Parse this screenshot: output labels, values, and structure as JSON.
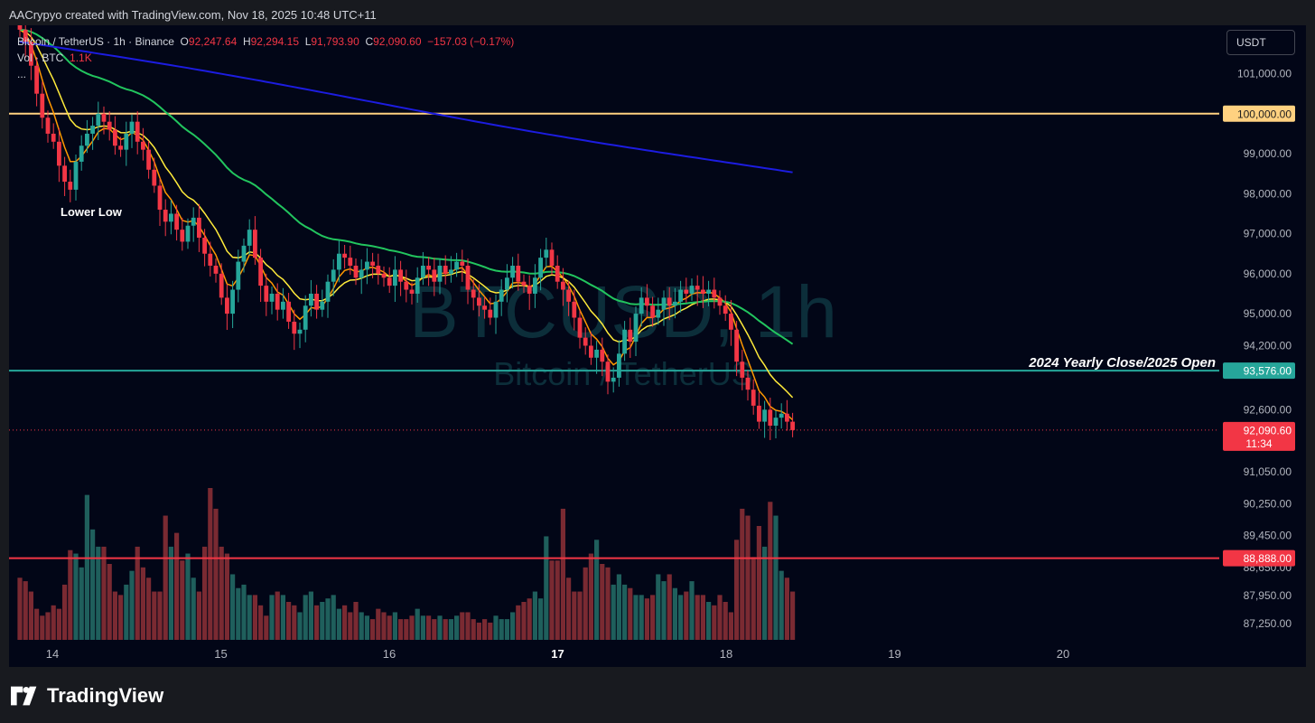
{
  "header": {
    "creator_line": "AACrypyo created with TradingView.com, Nov 18, 2025 10:48 UTC+11"
  },
  "legend": {
    "symbol_line": "Bitcoin / TetherUS · 1h · Binance",
    "o_label": "O",
    "o_value": "92,247.64",
    "h_label": "H",
    "h_value": "92,294.15",
    "l_label": "L",
    "l_value": "91,793.90",
    "c_label": "C",
    "c_value": "92,090.60",
    "change": "−157.03 (−0.17%)",
    "vol_label": "Vol · BTC",
    "vol_value": "1.1K",
    "more": "..."
  },
  "controls": {
    "currency_button": "USDT"
  },
  "watermark": {
    "line1": "BTCUSD, 1h",
    "line2": "Bitcoin / TetherUS"
  },
  "annotations": {
    "lower_low": "Lower Low",
    "yearly_close": "2024 Yearly Close/2025 Open"
  },
  "brand": {
    "name": "TradingView"
  },
  "colors": {
    "up": "#26a69a",
    "down": "#f23645",
    "ema_fast": "#ff9800",
    "ema_mid": "#ffeb3b",
    "ema_slow": "#22c55e",
    "ema_200": "#1c1ce0",
    "level_100k": "#ffd180",
    "level_93576": "#26a69a",
    "level_88888": "#f23645",
    "background": "#020617"
  },
  "chart_data": {
    "type": "candlestick",
    "timeframe": "1h",
    "ylim": [
      86800,
      101600
    ],
    "x_ticks": [
      {
        "label": "14",
        "day": 14
      },
      {
        "label": "15",
        "day": 15
      },
      {
        "label": "16",
        "day": 16
      },
      {
        "label": "17",
        "day": 17
      },
      {
        "label": "18",
        "day": 18
      },
      {
        "label": "19",
        "day": 19
      },
      {
        "label": "20",
        "day": 20
      }
    ],
    "y_ticks": [
      "101,000.00",
      "99,000.00",
      "98,000.00",
      "97,000.00",
      "96,000.00",
      "95,000.00",
      "94,200.00",
      "92,600.00",
      "91,050.00",
      "90,250.00",
      "89,450.00",
      "88,650.00",
      "87,950.00",
      "87,250.00"
    ],
    "y_tick_values": [
      101000,
      99000,
      98000,
      97000,
      96000,
      95000,
      94200,
      92600,
      91050,
      90250,
      89450,
      88650,
      87950,
      87250
    ],
    "levels": [
      {
        "label": "100,000.00",
        "value": 100000,
        "color": "#ffd180"
      },
      {
        "label": "93,576.00",
        "value": 93576,
        "color": "#26a69a"
      },
      {
        "label": "88,888.00",
        "value": 88888,
        "color": "#f23645"
      }
    ],
    "last_price": {
      "label": "92,090.60",
      "countdown": "11:34",
      "value": 92090.6
    },
    "closes": [
      102100,
      101800,
      101200,
      100500,
      99900,
      99500,
      99300,
      98700,
      98300,
      98100,
      98800,
      99200,
      99500,
      99700,
      100000,
      99800,
      99600,
      99200,
      99100,
      99500,
      99800,
      99300,
      99100,
      98600,
      98200,
      97600,
      97300,
      97500,
      97100,
      96800,
      97200,
      97400,
      96900,
      96500,
      96200,
      96000,
      95400,
      95000,
      95600,
      96300,
      96700,
      97100,
      96400,
      95700,
      95300,
      95500,
      95100,
      95300,
      94800,
      94500,
      94600,
      95200,
      95500,
      95100,
      95300,
      95800,
      96100,
      96500,
      96400,
      96200,
      95900,
      96100,
      96300,
      96200,
      96000,
      95900,
      95700,
      96100,
      95800,
      95600,
      95500,
      95900,
      96200,
      96100,
      95800,
      96200,
      96000,
      96100,
      96300,
      96200,
      95600,
      95400,
      95200,
      95100,
      94900,
      95300,
      95600,
      95900,
      96200,
      95800,
      95700,
      95500,
      95900,
      96400,
      96600,
      96200,
      95800,
      95600,
      95300,
      94900,
      94400,
      94200,
      93900,
      94100,
      93800,
      93300,
      93400,
      94000,
      94600,
      94300,
      95000,
      95400,
      95200,
      94900,
      95100,
      95400,
      95200,
      95300,
      95600,
      95500,
      95700,
      95600,
      95500,
      95600,
      95400,
      95200,
      95000,
      94600,
      93800,
      93400,
      93100,
      92700,
      92300,
      92600,
      92200,
      92400,
      92500,
      92300,
      92090
    ],
    "volumes": [
      900,
      850,
      700,
      450,
      350,
      400,
      500,
      450,
      800,
      1300,
      1250,
      1050,
      2100,
      1600,
      1350,
      1350,
      1100,
      700,
      650,
      800,
      1000,
      1350,
      1050,
      900,
      700,
      700,
      1800,
      1350,
      1550,
      1150,
      1250,
      900,
      700,
      1350,
      2200,
      1900,
      1350,
      1250,
      950,
      750,
      800,
      650,
      650,
      500,
      350,
      650,
      700,
      650,
      550,
      500,
      400,
      650,
      700,
      500,
      550,
      600,
      650,
      450,
      500,
      400,
      550,
      400,
      350,
      300,
      450,
      400,
      350,
      400,
      300,
      300,
      350,
      450,
      350,
      350,
      300,
      350,
      300,
      300,
      350,
      400,
      400,
      300,
      250,
      300,
      250,
      350,
      300,
      300,
      400,
      500,
      550,
      600,
      700,
      600,
      1500,
      1150,
      1150,
      1900,
      900,
      700,
      700,
      1050,
      1250,
      1450,
      1100,
      1050,
      800,
      950,
      800,
      750,
      650,
      650,
      600,
      650,
      950,
      850,
      950,
      750,
      650,
      700,
      850,
      650,
      650,
      550,
      500,
      650,
      550,
      400,
      1450,
      1900,
      1800,
      1200,
      1650,
      1350,
      2000,
      1800,
      1000,
      900,
      700
    ],
    "ema_fast_comment": "orange/yellow/green/blue moving averages drawn as lines over the candles"
  }
}
